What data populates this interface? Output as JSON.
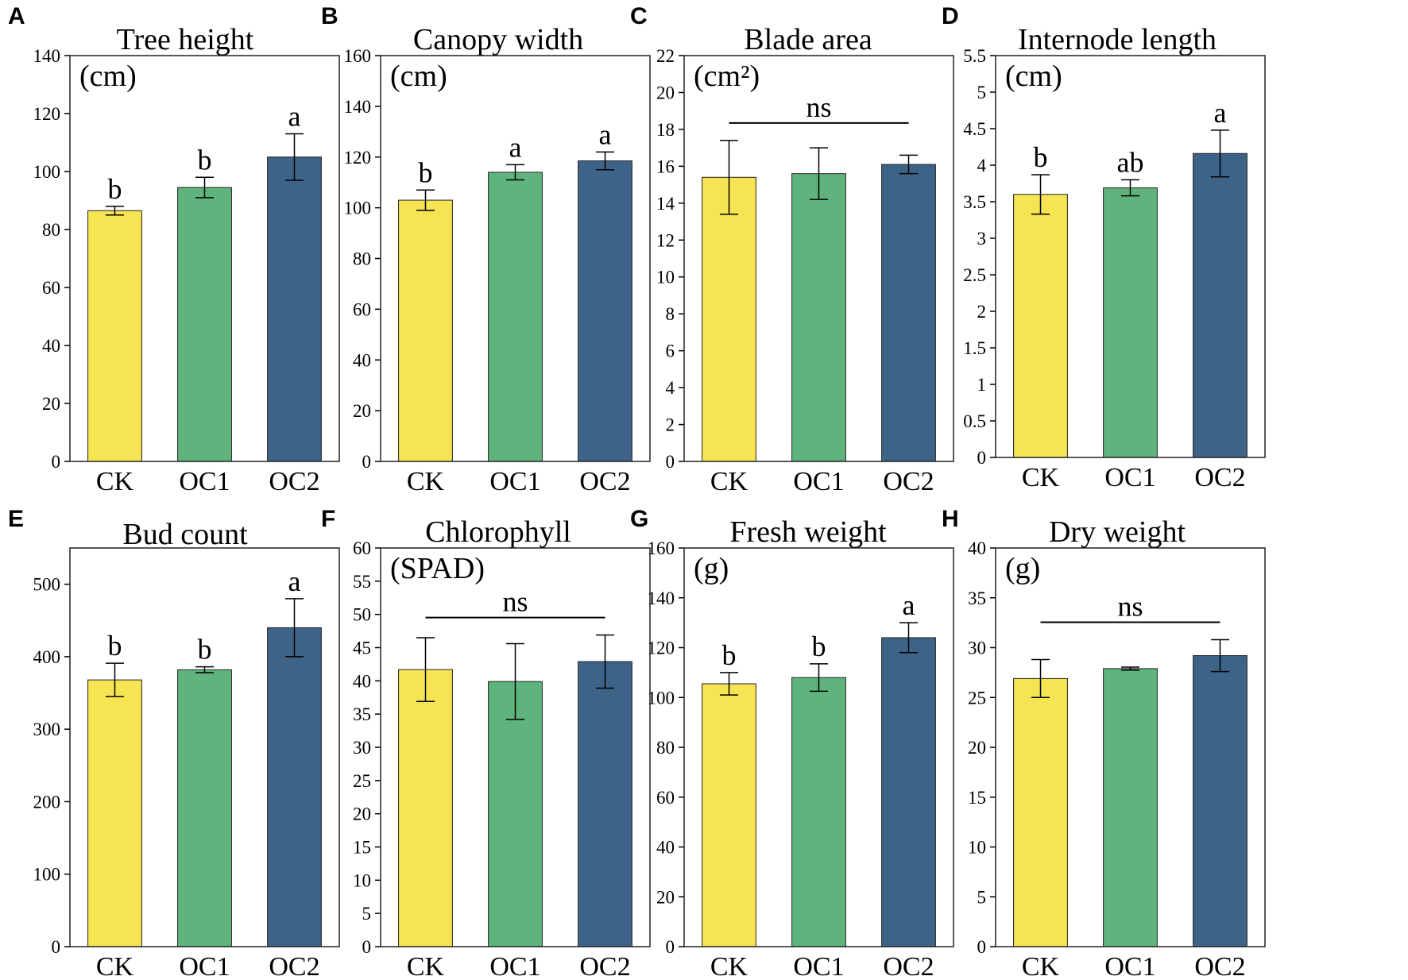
{
  "figure": {
    "colors": {
      "CK": "#f6e453",
      "OC1": "#5fb37c",
      "OC2": "#3e6388"
    }
  },
  "chart_data": [
    {
      "panel": "A",
      "type": "bar",
      "title": "Tree height",
      "unit": "(cm)",
      "categories": [
        "CK",
        "OC1",
        "OC2"
      ],
      "values": [
        86.5,
        94.5,
        105
      ],
      "errors": [
        1.5,
        3.5,
        8
      ],
      "letters": [
        "b",
        "b",
        "a"
      ],
      "ylim": [
        0,
        140
      ],
      "yticks": [
        0,
        20,
        40,
        60,
        80,
        100,
        120,
        140
      ]
    },
    {
      "panel": "B",
      "type": "bar",
      "title": "Canopy width",
      "unit": "(cm)",
      "categories": [
        "CK",
        "OC1",
        "OC2"
      ],
      "values": [
        103,
        114,
        118.5
      ],
      "errors": [
        4,
        3,
        3.5
      ],
      "letters": [
        "b",
        "a",
        "a"
      ],
      "ylim": [
        0,
        160
      ],
      "yticks": [
        0,
        20,
        40,
        60,
        80,
        100,
        120,
        140,
        160
      ]
    },
    {
      "panel": "C",
      "type": "bar",
      "title": "Blade area",
      "unit": "(cm²)",
      "categories": [
        "CK",
        "OC1",
        "OC2"
      ],
      "values": [
        15.4,
        15.6,
        16.1
      ],
      "errors": [
        2.0,
        1.4,
        0.5
      ],
      "ns": "ns",
      "ylim": [
        0,
        22
      ],
      "yticks": [
        0,
        2,
        4,
        6,
        8,
        10,
        12,
        14,
        16,
        18,
        20,
        22
      ]
    },
    {
      "panel": "D",
      "type": "bar",
      "title": "Internode length",
      "unit": "(cm)",
      "categories": [
        "CK",
        "OC1",
        "OC2"
      ],
      "values": [
        3.6,
        3.69,
        4.16
      ],
      "errors": [
        0.27,
        0.11,
        0.32
      ],
      "letters": [
        "b",
        "ab",
        "a"
      ],
      "ylim": [
        0,
        5.5
      ],
      "yticks": [
        0,
        0.5,
        1,
        1.5,
        2,
        2.5,
        3,
        3.5,
        4,
        4.5,
        5,
        5.5
      ]
    },
    {
      "panel": "E",
      "type": "bar",
      "title": "Bud count",
      "unit": "",
      "categories": [
        "CK",
        "OC1",
        "OC2"
      ],
      "values": [
        368,
        382,
        440
      ],
      "errors": [
        23,
        4,
        40
      ],
      "letters": [
        "b",
        "b",
        "a"
      ],
      "ylim": [
        0,
        550
      ],
      "yticks": [
        0,
        100,
        200,
        300,
        400,
        500
      ]
    },
    {
      "panel": "F",
      "type": "bar",
      "title": "Chlorophyll",
      "unit": "(SPAD)",
      "categories": [
        "CK",
        "OC1",
        "OC2"
      ],
      "values": [
        41.7,
        39.9,
        42.9
      ],
      "errors": [
        4.8,
        5.7,
        4.0
      ],
      "ns": "ns",
      "ylim": [
        0,
        60
      ],
      "yticks": [
        0,
        5,
        10,
        15,
        20,
        25,
        30,
        35,
        40,
        45,
        50,
        55,
        60
      ]
    },
    {
      "panel": "G",
      "type": "bar",
      "title": "Fresh weight",
      "unit": "(g)",
      "categories": [
        "CK",
        "OC1",
        "OC2"
      ],
      "values": [
        105.5,
        108,
        124
      ],
      "errors": [
        4.5,
        5.5,
        6
      ],
      "letters": [
        "b",
        "b",
        "a"
      ],
      "ylim": [
        0,
        160
      ],
      "yticks": [
        0,
        20,
        40,
        60,
        80,
        100,
        120,
        140,
        160
      ]
    },
    {
      "panel": "H",
      "type": "bar",
      "title": "Dry weight",
      "unit": "(g)",
      "categories": [
        "CK",
        "OC1",
        "OC2"
      ],
      "values": [
        26.9,
        27.9,
        29.2
      ],
      "errors": [
        1.9,
        0.15,
        1.6
      ],
      "ns": "ns",
      "ylim": [
        0,
        40
      ],
      "yticks": [
        0,
        5,
        10,
        15,
        20,
        25,
        30,
        35,
        40
      ]
    }
  ]
}
